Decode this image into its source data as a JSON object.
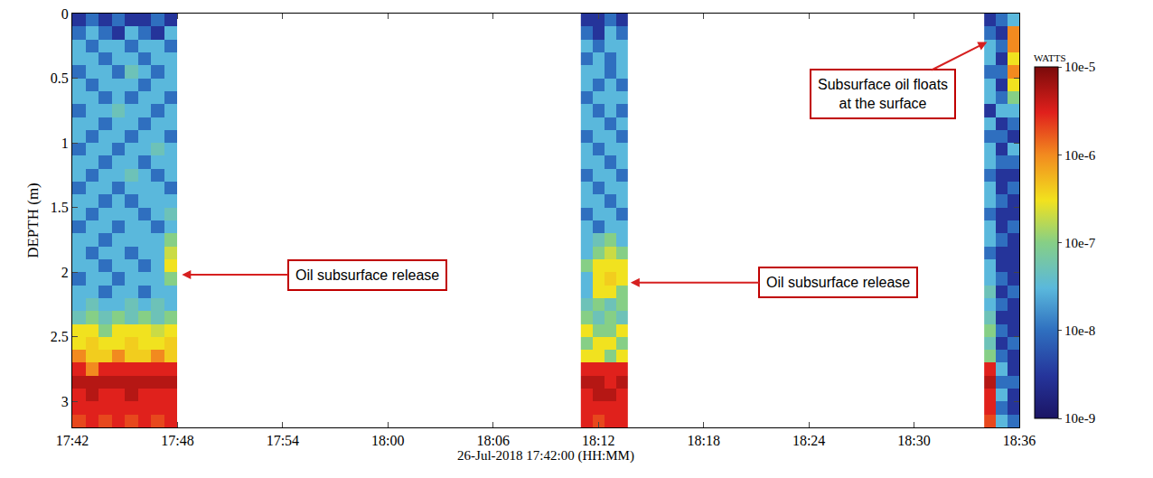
{
  "chart_data": {
    "type": "heatmap",
    "x_title": "26-Jul-2018 17:42:00 (HH:MM)",
    "y_title": "DEPTH (m)",
    "colorbar_title": "WATTS",
    "xlim": [
      "2018-07-26 17:42:00",
      "2018-07-26 18:36:00"
    ],
    "xticks": [
      {
        "value": "2018-07-26 17:42:00",
        "label": "17:42"
      },
      {
        "value": "2018-07-26 17:48:00",
        "label": "17:48"
      },
      {
        "value": "2018-07-26 17:54:00",
        "label": "17:54"
      },
      {
        "value": "2018-07-26 18:00:00",
        "label": "18:00"
      },
      {
        "value": "2018-07-26 18:06:00",
        "label": "18:06"
      },
      {
        "value": "2018-07-26 18:12:00",
        "label": "18:12"
      },
      {
        "value": "2018-07-26 18:18:00",
        "label": "18:18"
      },
      {
        "value": "2018-07-26 18:24:00",
        "label": "18:24"
      },
      {
        "value": "2018-07-26 18:30:00",
        "label": "18:30"
      },
      {
        "value": "2018-07-26 18:36:00",
        "label": "18:36"
      }
    ],
    "ylim": [
      3.2,
      0
    ],
    "yticks": [
      0,
      0.5,
      1,
      1.5,
      2,
      2.5,
      3
    ],
    "zlim": [
      1e-09,
      1e-05
    ],
    "zticks": [
      {
        "value": 1e-05,
        "label": "10e-5"
      },
      {
        "value": 1e-06,
        "label": "10e-6"
      },
      {
        "value": 1e-07,
        "label": "10e-7"
      },
      {
        "value": 1e-08,
        "label": "10e-8"
      },
      {
        "value": 1e-09,
        "label": "10e-9"
      }
    ],
    "y": [
      0.05,
      0.15,
      0.25,
      0.35,
      0.45,
      0.55,
      0.65,
      0.75,
      0.85,
      0.95,
      1.05,
      1.15,
      1.25,
      1.35,
      1.45,
      1.55,
      1.65,
      1.75,
      1.85,
      1.95,
      2.05,
      2.15,
      2.25,
      2.35,
      2.45,
      2.55,
      2.65,
      2.75,
      2.85,
      2.95,
      3.05,
      3.15
    ],
    "series": [
      {
        "x": [
          "2018-07-26 17:42:22.5",
          "2018-07-26 17:43:07.5",
          "2018-07-26 17:43:52.5",
          "2018-07-26 17:44:37.5",
          "2018-07-26 17:45:22.5",
          "2018-07-26 17:46:07.5",
          "2018-07-26 17:46:52.5",
          "2018-07-26 17:47:37.5"
        ],
        "z": [
          [
            3e-09,
            1e-08,
            3e-09,
            1e-08,
            3e-09,
            3e-09,
            1e-08,
            3e-09
          ],
          [
            1e-08,
            3e-08,
            1e-08,
            3e-09,
            3e-08,
            1e-08,
            3e-09,
            3e-08
          ],
          [
            3e-08,
            1e-08,
            3e-08,
            3e-08,
            1e-08,
            3e-08,
            3e-08,
            1e-08
          ],
          [
            3e-08,
            3e-08,
            1e-08,
            3e-08,
            3e-08,
            1e-08,
            3e-08,
            3e-08
          ],
          [
            1e-08,
            3e-08,
            3e-08,
            1e-08,
            5e-08,
            3e-08,
            1e-08,
            3e-08
          ],
          [
            3e-08,
            1e-08,
            3e-08,
            3e-08,
            3e-08,
            1e-08,
            3e-08,
            3e-08
          ],
          [
            3e-08,
            3e-08,
            1e-08,
            3e-08,
            1e-08,
            3e-08,
            3e-08,
            1e-08
          ],
          [
            1e-08,
            3e-08,
            3e-08,
            5e-08,
            3e-08,
            3e-08,
            1e-08,
            3e-08
          ],
          [
            3e-08,
            3e-08,
            1e-08,
            3e-08,
            3e-08,
            1e-08,
            3e-08,
            3e-08
          ],
          [
            3e-08,
            1e-08,
            3e-08,
            3e-08,
            1e-08,
            3e-08,
            3e-08,
            1e-08
          ],
          [
            1e-08,
            3e-08,
            3e-08,
            1e-08,
            3e-08,
            3e-08,
            5e-08,
            3e-08
          ],
          [
            3e-08,
            3e-08,
            1e-08,
            3e-08,
            3e-08,
            1e-08,
            3e-08,
            3e-08
          ],
          [
            3e-08,
            1e-08,
            3e-08,
            3e-08,
            5e-08,
            3e-08,
            1e-08,
            3e-08
          ],
          [
            1e-08,
            3e-08,
            3e-08,
            1e-08,
            3e-08,
            3e-08,
            3e-08,
            1e-08
          ],
          [
            3e-08,
            3e-08,
            1e-08,
            3e-08,
            1e-08,
            3e-08,
            3e-08,
            3e-08
          ],
          [
            3e-08,
            1e-08,
            3e-08,
            3e-08,
            3e-08,
            1e-08,
            3e-08,
            5e-08
          ],
          [
            1e-08,
            3e-08,
            3e-08,
            1e-08,
            3e-08,
            3e-08,
            1e-08,
            3e-08
          ],
          [
            3e-08,
            3e-08,
            1e-08,
            3e-08,
            3e-08,
            3e-08,
            3e-08,
            1e-07
          ],
          [
            3e-08,
            1e-08,
            3e-08,
            3e-08,
            1e-08,
            3e-08,
            3e-08,
            2e-07
          ],
          [
            3e-08,
            3e-08,
            1e-08,
            3e-08,
            3e-08,
            1e-08,
            3e-08,
            3e-07
          ],
          [
            1e-08,
            3e-08,
            3e-08,
            1e-08,
            3e-08,
            3e-08,
            3e-08,
            1e-07
          ],
          [
            3e-08,
            3e-08,
            1e-08,
            3e-08,
            3e-08,
            1e-08,
            3e-08,
            3e-08
          ],
          [
            3e-08,
            5e-08,
            3e-08,
            3e-08,
            5e-08,
            3e-08,
            5e-08,
            3e-08
          ],
          [
            5e-08,
            1e-07,
            5e-08,
            1e-07,
            5e-08,
            1e-07,
            5e-08,
            1e-07
          ],
          [
            3e-07,
            3e-07,
            1e-07,
            3e-07,
            3e-07,
            3e-07,
            2e-07,
            3e-07
          ],
          [
            3e-07,
            4e-07,
            3e-07,
            3e-07,
            4e-07,
            3e-07,
            3e-07,
            4e-07
          ],
          [
            1e-06,
            4e-07,
            4e-07,
            1e-06,
            4e-07,
            4e-07,
            1e-06,
            4e-07
          ],
          [
            3e-06,
            1e-06,
            3e-06,
            3e-06,
            3e-06,
            3e-06,
            3e-06,
            3e-06
          ],
          [
            5e-06,
            5e-06,
            5e-06,
            5e-06,
            5e-06,
            5e-06,
            5e-06,
            5e-06
          ],
          [
            3e-06,
            5e-06,
            3e-06,
            3e-06,
            5e-06,
            3e-06,
            3e-06,
            3e-06
          ],
          [
            3e-06,
            3e-06,
            3e-06,
            3e-06,
            3e-06,
            3e-06,
            3e-06,
            3e-06
          ],
          [
            2e-06,
            3e-06,
            2e-06,
            3e-06,
            2e-06,
            3e-06,
            2e-06,
            3e-06
          ]
        ]
      },
      {
        "x": [
          "2018-07-26 18:11:20",
          "2018-07-26 18:12:00",
          "2018-07-26 18:12:40",
          "2018-07-26 18:13:20"
        ],
        "z": [
          [
            3e-09,
            3e-09,
            1e-08,
            3e-09
          ],
          [
            1e-08,
            3e-09,
            3e-08,
            1e-08
          ],
          [
            3e-08,
            1e-08,
            3e-08,
            3e-08
          ],
          [
            1e-08,
            3e-08,
            1e-08,
            3e-08
          ],
          [
            3e-08,
            3e-08,
            1e-08,
            3e-08
          ],
          [
            3e-08,
            1e-08,
            3e-08,
            1e-08
          ],
          [
            1e-08,
            3e-08,
            3e-08,
            3e-08
          ],
          [
            3e-08,
            1e-08,
            3e-08,
            1e-08
          ],
          [
            3e-08,
            3e-08,
            1e-08,
            3e-08
          ],
          [
            1e-08,
            3e-08,
            3e-08,
            1e-08
          ],
          [
            3e-08,
            1e-08,
            3e-08,
            3e-08
          ],
          [
            3e-08,
            3e-08,
            1e-08,
            3e-08
          ],
          [
            1e-08,
            3e-08,
            3e-08,
            1e-08
          ],
          [
            3e-08,
            1e-08,
            3e-08,
            3e-08
          ],
          [
            3e-08,
            3e-08,
            1e-08,
            3e-08
          ],
          [
            1e-08,
            3e-08,
            3e-08,
            1e-08
          ],
          [
            3e-08,
            1e-08,
            3e-08,
            3e-08
          ],
          [
            3e-08,
            5e-08,
            1e-07,
            3e-08
          ],
          [
            3e-08,
            1e-07,
            2e-07,
            1e-07
          ],
          [
            1e-07,
            3e-07,
            3e-07,
            3e-07
          ],
          [
            3e-08,
            3e-07,
            4e-07,
            3e-07
          ],
          [
            3e-08,
            3e-07,
            3e-07,
            1e-07
          ],
          [
            5e-08,
            1e-07,
            5e-08,
            1e-07
          ],
          [
            1e-07,
            5e-08,
            1e-07,
            5e-08
          ],
          [
            3e-07,
            1e-07,
            1e-07,
            3e-07
          ],
          [
            1e-07,
            3e-07,
            3e-07,
            1e-07
          ],
          [
            3e-07,
            3e-07,
            1e-07,
            3e-07
          ],
          [
            3e-06,
            3e-06,
            3e-06,
            3e-06
          ],
          [
            5e-06,
            5e-06,
            3e-06,
            5e-06
          ],
          [
            3e-06,
            5e-06,
            5e-06,
            3e-06
          ],
          [
            3e-06,
            3e-06,
            3e-06,
            3e-06
          ],
          [
            3e-06,
            2e-06,
            3e-06,
            3e-06
          ]
        ]
      },
      {
        "x": [
          "2018-07-26 18:34:20",
          "2018-07-26 18:35:00",
          "2018-07-26 18:35:40"
        ],
        "z": [
          [
            3e-09,
            1e-08,
            3e-08
          ],
          [
            1e-08,
            3e-09,
            1e-06
          ],
          [
            3e-08,
            1e-08,
            1e-06
          ],
          [
            3e-08,
            3e-09,
            3e-07
          ],
          [
            1e-08,
            1e-08,
            1e-06
          ],
          [
            3e-08,
            3e-09,
            3e-07
          ],
          [
            3e-08,
            1e-08,
            1e-07
          ],
          [
            3e-09,
            3e-08,
            3e-08
          ],
          [
            3e-08,
            3e-09,
            1e-08
          ],
          [
            1e-08,
            1e-08,
            3e-09
          ],
          [
            3e-08,
            3e-09,
            3e-08
          ],
          [
            3e-08,
            1e-08,
            1e-08
          ],
          [
            1e-08,
            3e-09,
            3e-09
          ],
          [
            3e-08,
            3e-09,
            1e-08
          ],
          [
            3e-08,
            1e-08,
            3e-09
          ],
          [
            1e-08,
            3e-09,
            3e-09
          ],
          [
            3e-08,
            3e-09,
            1e-08
          ],
          [
            3e-08,
            1e-08,
            3e-09
          ],
          [
            1e-08,
            3e-09,
            3e-09
          ],
          [
            3e-08,
            3e-09,
            3e-09
          ],
          [
            3e-08,
            1e-08,
            3e-09
          ],
          [
            5e-08,
            3e-09,
            1e-08
          ],
          [
            3e-08,
            1e-08,
            3e-09
          ],
          [
            5e-08,
            3e-09,
            3e-09
          ],
          [
            1e-07,
            1e-08,
            3e-09
          ],
          [
            5e-08,
            3e-09,
            1e-08
          ],
          [
            1e-07,
            1e-08,
            3e-09
          ],
          [
            3e-06,
            3e-08,
            3e-09
          ],
          [
            5e-06,
            1e-08,
            1e-08
          ],
          [
            3e-06,
            3e-08,
            3e-09
          ],
          [
            3e-06,
            1e-08,
            3e-09
          ],
          [
            2e-06,
            3e-08,
            1e-08
          ]
        ]
      }
    ],
    "annotations": [
      {
        "text": "Oil subsurface release",
        "x": "2018-07-26 17:48:15",
        "y": 2.02
      },
      {
        "text": "Oil subsurface release",
        "x": "2018-07-26 18:13:50",
        "y": 2.08
      },
      {
        "text": "Subsurface oil floats at the surface",
        "x": "2018-07-26 18:34:10",
        "y": 0.22
      }
    ]
  }
}
